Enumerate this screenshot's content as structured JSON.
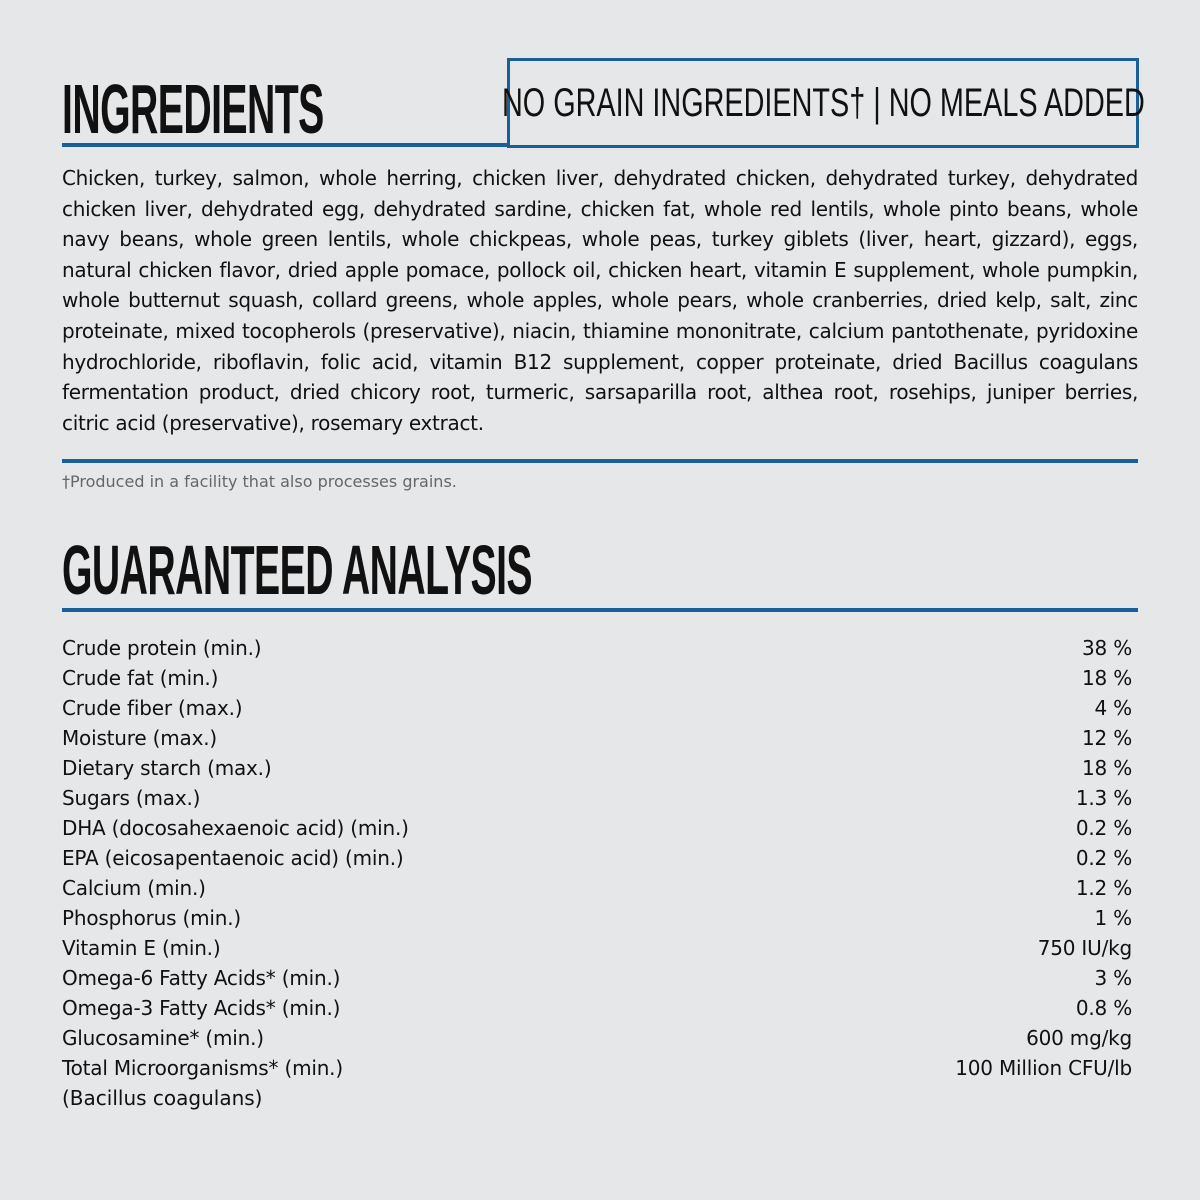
{
  "ingredients": {
    "title": "INGREDIENTS",
    "badge": "NO GRAIN INGREDIENTS† | NO MEALS ADDED",
    "text": "Chicken, turkey, salmon, whole herring, chicken liver, dehydrated chicken, dehydrated turkey, dehydrated chicken liver, dehydrated egg, dehydrated sardine, chicken fat, whole red lentils, whole pinto beans, whole navy beans, whole green lentils, whole chickpeas, whole peas, turkey giblets (liver, heart, gizzard), eggs, natural chicken flavor, dried apple pomace, pollock oil, chicken heart, vitamin E supplement, whole pumpkin, whole butternut squash, collard greens, whole apples, whole pears, whole cranberries, dried kelp, salt, zinc proteinate, mixed tocopherols (preservative), niacin, thiamine mononitrate, calcium pantothenate, pyridoxine hydrochloride, riboflavin, folic acid, vitamin B12 supplement, copper proteinate, dried Bacillus coagulans fermentation product, dried chicory root, turmeric, sarsaparilla root, althea root, rosehips, juniper berries, citric acid (preservative), rosemary extract.",
    "footnote": "†Produced in a facility that also processes grains."
  },
  "analysis": {
    "title": "GUARANTEED ANALYSIS",
    "rows": [
      {
        "label": "Crude protein (min.)",
        "value": "38 %"
      },
      {
        "label": "Crude fat (min.)",
        "value": "18 %"
      },
      {
        "label": "Crude fiber (max.)",
        "value": "4 %"
      },
      {
        "label": "Moisture (max.)",
        "value": "12 %"
      },
      {
        "label": "Dietary starch (max.)",
        "value": "18 %"
      },
      {
        "label": "Sugars (max.)",
        "value": "1.3 %"
      },
      {
        "label": "DHA (docosahexaenoic acid) (min.)",
        "value": "0.2 %"
      },
      {
        "label": "EPA (eicosapentaenoic acid) (min.)",
        "value": "0.2 %"
      },
      {
        "label": "Calcium (min.)",
        "value": "1.2 %"
      },
      {
        "label": "Phosphorus (min.)",
        "value": "1 %"
      },
      {
        "label": "Vitamin E (min.)",
        "value": "750 IU/kg"
      },
      {
        "label": "Omega-6 Fatty Acids* (min.)",
        "value": "3 %"
      },
      {
        "label": "Omega-3 Fatty Acids* (min.)",
        "value": "0.8 %"
      },
      {
        "label": "Glucosamine* (min.)",
        "value": "600 mg/kg"
      },
      {
        "label": "Total Microorganisms* (min.)",
        "value": "100 Million CFU/lb"
      }
    ],
    "subnote": "(Bacillus coagulans)"
  },
  "colors": {
    "accent": "#1a5e9a",
    "background": "#e6e7e9"
  }
}
